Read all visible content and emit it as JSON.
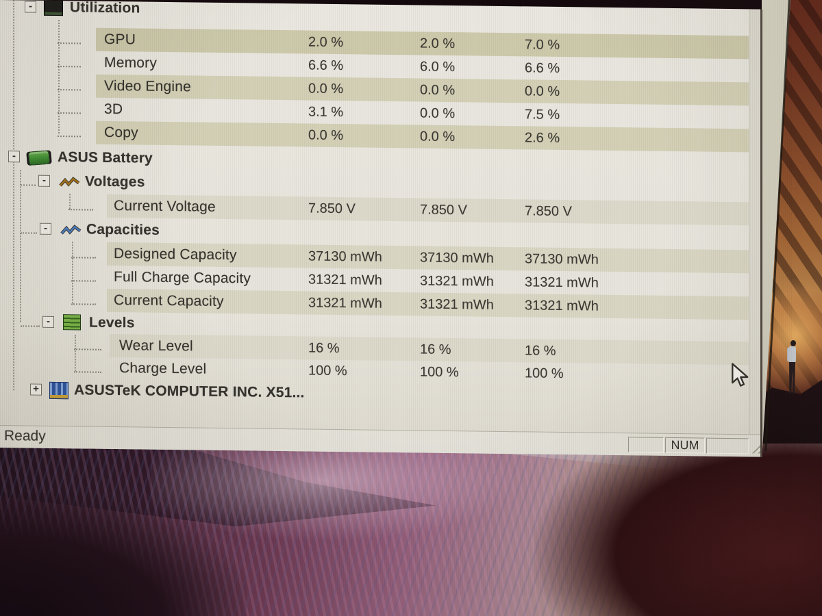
{
  "window": {
    "status": {
      "ready": "Ready",
      "num_indicator": "NUM"
    }
  },
  "colors": {
    "row_highlight": "#cdc9ab",
    "row_stripe": "#d3d0b6",
    "battery_stripe": "#dfdcce",
    "window_bg": "#e8e6de"
  },
  "sensor_tree": {
    "rows": [
      {
        "id": "utilization",
        "label": "Utilization",
        "icon": "utilization-icon",
        "expand_glyph": "-"
      },
      {
        "id": "gpu",
        "label": "GPU",
        "values": [
          "2.0 %",
          "2.0 %",
          "7.0 %"
        ]
      },
      {
        "id": "memory",
        "label": "Memory",
        "values": [
          "6.6 %",
          "6.0 %",
          "6.6 %"
        ]
      },
      {
        "id": "video-engine",
        "label": "Video Engine",
        "values": [
          "0.0 %",
          "0.0 %",
          "0.0 %"
        ]
      },
      {
        "id": "3d",
        "label": "3D",
        "values": [
          "3.1 %",
          "0.0 %",
          "7.5 %"
        ]
      },
      {
        "id": "copy",
        "label": "Copy",
        "values": [
          "0.0 %",
          "0.0 %",
          "2.6 %"
        ]
      },
      {
        "id": "asus-battery",
        "label": "ASUS Battery",
        "icon": "battery-icon",
        "expand_glyph": "-"
      },
      {
        "id": "voltages",
        "label": "Voltages",
        "icon": "voltages-icon",
        "expand_glyph": "-"
      },
      {
        "id": "current-voltage",
        "label": "Current Voltage",
        "values": [
          "7.850 V",
          "7.850 V",
          "7.850 V"
        ]
      },
      {
        "id": "capacities",
        "label": "Capacities",
        "icon": "capacities-icon",
        "expand_glyph": "-"
      },
      {
        "id": "designed-capacity",
        "label": "Designed Capacity",
        "values": [
          "37130 mWh",
          "37130 mWh",
          "37130 mWh"
        ]
      },
      {
        "id": "full-charge-capacity",
        "label": "Full Charge Capacity",
        "values": [
          "31321 mWh",
          "31321 mWh",
          "31321 mWh"
        ]
      },
      {
        "id": "current-capacity",
        "label": "Current Capacity",
        "values": [
          "31321 mWh",
          "31321 mWh",
          "31321 mWh"
        ]
      },
      {
        "id": "levels",
        "label": "Levels",
        "icon": "levels-icon",
        "expand_glyph": "-"
      },
      {
        "id": "wear-level",
        "label": "Wear Level",
        "values": [
          "16 %",
          "16 %",
          "16 %"
        ]
      },
      {
        "id": "charge-level",
        "label": "Charge Level",
        "values": [
          "100 %",
          "100 %",
          "100 %"
        ]
      },
      {
        "id": "motherboard",
        "label": "ASUSTeK COMPUTER INC. X51...",
        "icon": "motherboard-icon",
        "expand_glyph": "+"
      }
    ]
  }
}
